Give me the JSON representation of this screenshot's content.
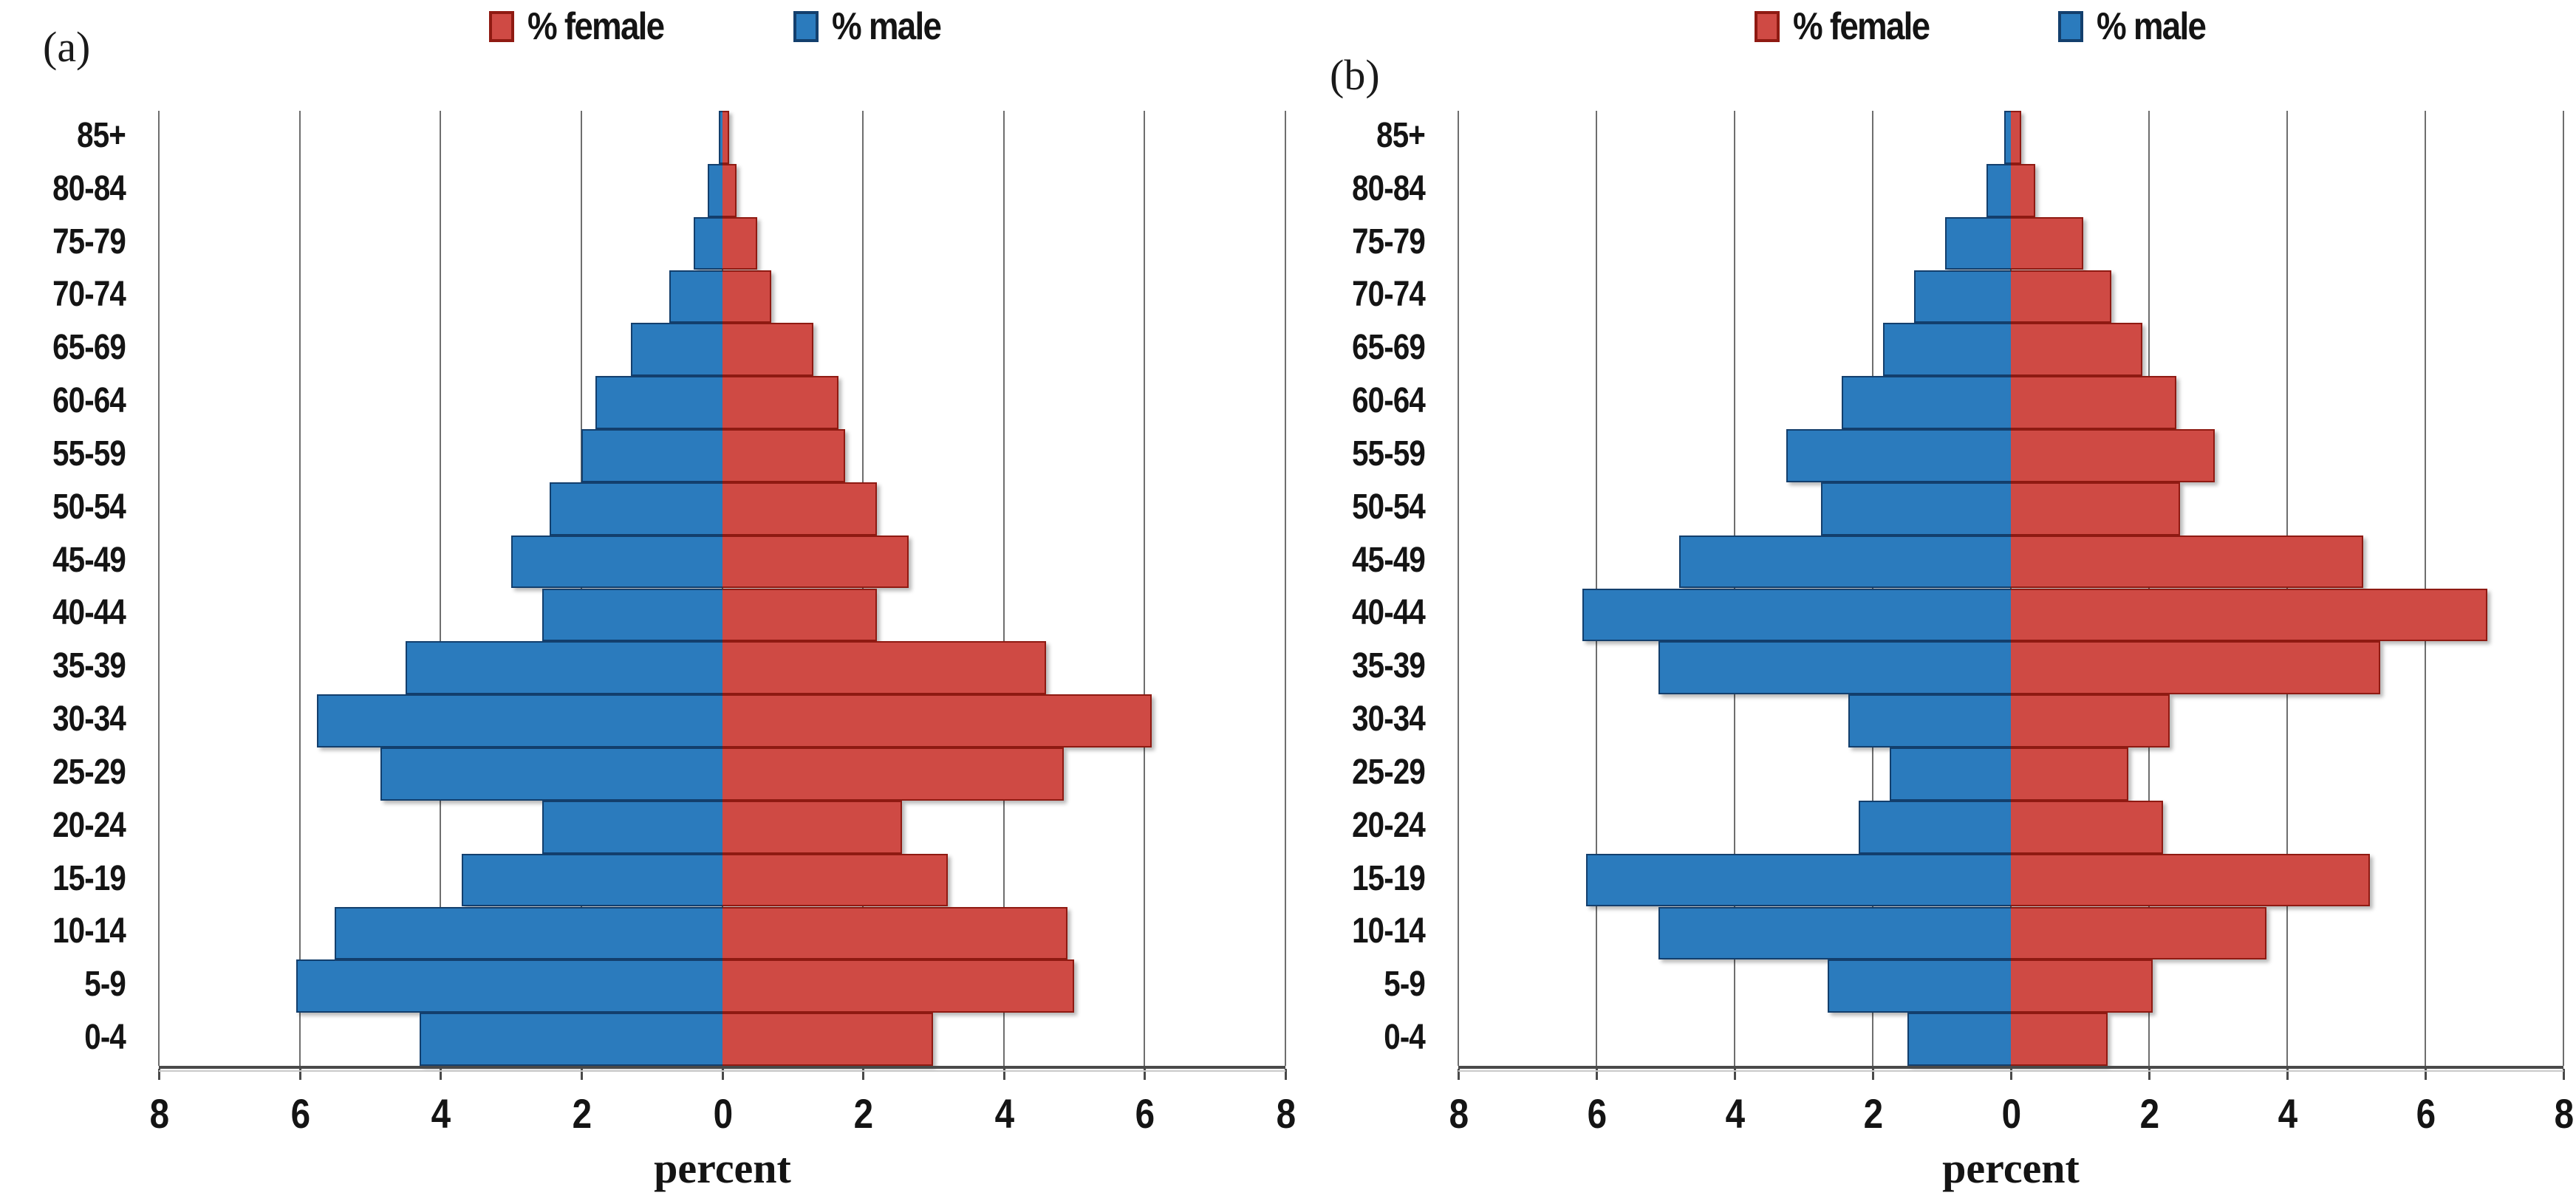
{
  "legend": {
    "female_label": "% female",
    "male_label": "% male"
  },
  "colors": {
    "male_fill": "#2b7bbd",
    "male_edge": "#133f6d",
    "female_fill": "#cf4a44",
    "female_edge": "#8f1a12",
    "gridline": "#6e6e6e",
    "axis": "#4a4a4a"
  },
  "x_axis": {
    "tick_labels": [
      "8",
      "6",
      "4",
      "2",
      "0",
      "2",
      "4",
      "6",
      "8"
    ],
    "title": "percent",
    "unit_max": 8,
    "gridlines_every": 2
  },
  "chart_data": [
    {
      "type": "bar",
      "subtype": "population-pyramid",
      "panel": "(a)",
      "xlabel": "percent",
      "xlim": [
        -8,
        8
      ],
      "grid": true,
      "legend_position": "top-center",
      "categories_top_to_bottom": [
        "85+",
        "80-84",
        "75-79",
        "70-74",
        "65-69",
        "60-64",
        "55-59",
        "50-54",
        "45-49",
        "40-44",
        "35-39",
        "30-34",
        "25-29",
        "20-24",
        "15-19",
        "10-14",
        "5-9",
        "0-4"
      ],
      "series": [
        {
          "name": "% male",
          "side": "left",
          "values_top_to_bottom": [
            0.05,
            0.2,
            0.4,
            0.75,
            1.3,
            1.8,
            2.0,
            2.45,
            3.0,
            2.55,
            4.5,
            5.75,
            4.85,
            2.55,
            3.7,
            5.5,
            6.05,
            4.3
          ]
        },
        {
          "name": "% female",
          "side": "right",
          "values_top_to_bottom": [
            0.1,
            0.2,
            0.5,
            0.7,
            1.3,
            1.65,
            1.75,
            2.2,
            2.65,
            2.2,
            4.6,
            6.1,
            4.85,
            2.55,
            3.2,
            4.9,
            5.0,
            3.0
          ]
        }
      ]
    },
    {
      "type": "bar",
      "subtype": "population-pyramid",
      "panel": "(b)",
      "xlabel": "percent",
      "xlim": [
        -8,
        8
      ],
      "grid": true,
      "legend_position": "top-center",
      "categories_top_to_bottom": [
        "85+",
        "80-84",
        "75-79",
        "70-74",
        "65-69",
        "60-64",
        "55-59",
        "50-54",
        "45-49",
        "40-44",
        "35-39",
        "30-34",
        "25-29",
        "20-24",
        "15-19",
        "10-14",
        "5-9",
        "0-4"
      ],
      "series": [
        {
          "name": "% male",
          "side": "left",
          "values_top_to_bottom": [
            0.1,
            0.35,
            0.95,
            1.4,
            1.85,
            2.45,
            3.25,
            2.75,
            4.8,
            6.2,
            5.1,
            2.35,
            1.75,
            2.2,
            6.15,
            5.1,
            2.65,
            1.5
          ]
        },
        {
          "name": "% female",
          "side": "right",
          "values_top_to_bottom": [
            0.15,
            0.35,
            1.05,
            1.45,
            1.9,
            2.4,
            2.95,
            2.45,
            5.1,
            6.9,
            5.35,
            2.3,
            1.7,
            2.2,
            5.2,
            3.7,
            2.05,
            1.4
          ]
        }
      ]
    }
  ]
}
